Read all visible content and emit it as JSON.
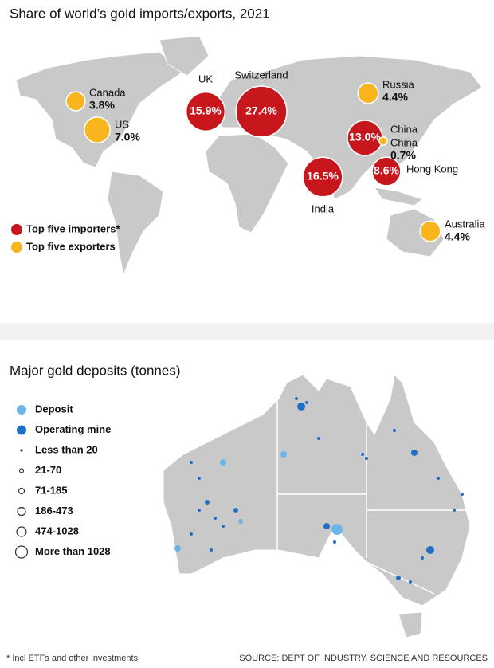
{
  "world_map": {
    "title": "Share of world’s gold imports/exports, 2021",
    "series": [
      {
        "name": "Top five importers*",
        "color": "#c8161d",
        "names": [
          "UK",
          "Switzerland",
          "India",
          "China",
          "Hong Kong"
        ],
        "values": [
          15.9,
          27.4,
          16.5,
          13.0,
          8.6
        ],
        "value_labels": [
          "15.9%",
          "27.4%",
          "16.5%",
          "13.0%",
          "8.6%"
        ]
      },
      {
        "name": "Top five exporters",
        "color": "#f8b51d",
        "names": [
          "Canada",
          "US",
          "Russia",
          "China",
          "Australia"
        ],
        "values": [
          3.8,
          7.0,
          4.4,
          0.7,
          4.4
        ],
        "value_labels": [
          "3.8%",
          "7.0%",
          "4.4%",
          "0.7%",
          "4.4%"
        ]
      }
    ]
  },
  "deposits_map": {
    "title": "Major gold deposits (tonnes)",
    "legend": [
      "Deposit",
      "Operating mine",
      "Less than 20",
      "21-70",
      "71-185",
      "186-473",
      "474-1028",
      "More than 1028"
    ]
  },
  "footer": {
    "note": "* Incl ETFs and other investments",
    "source": "SOURCE: DEPT OF INDUSTRY, SCIENCE AND RESOURCES"
  }
}
